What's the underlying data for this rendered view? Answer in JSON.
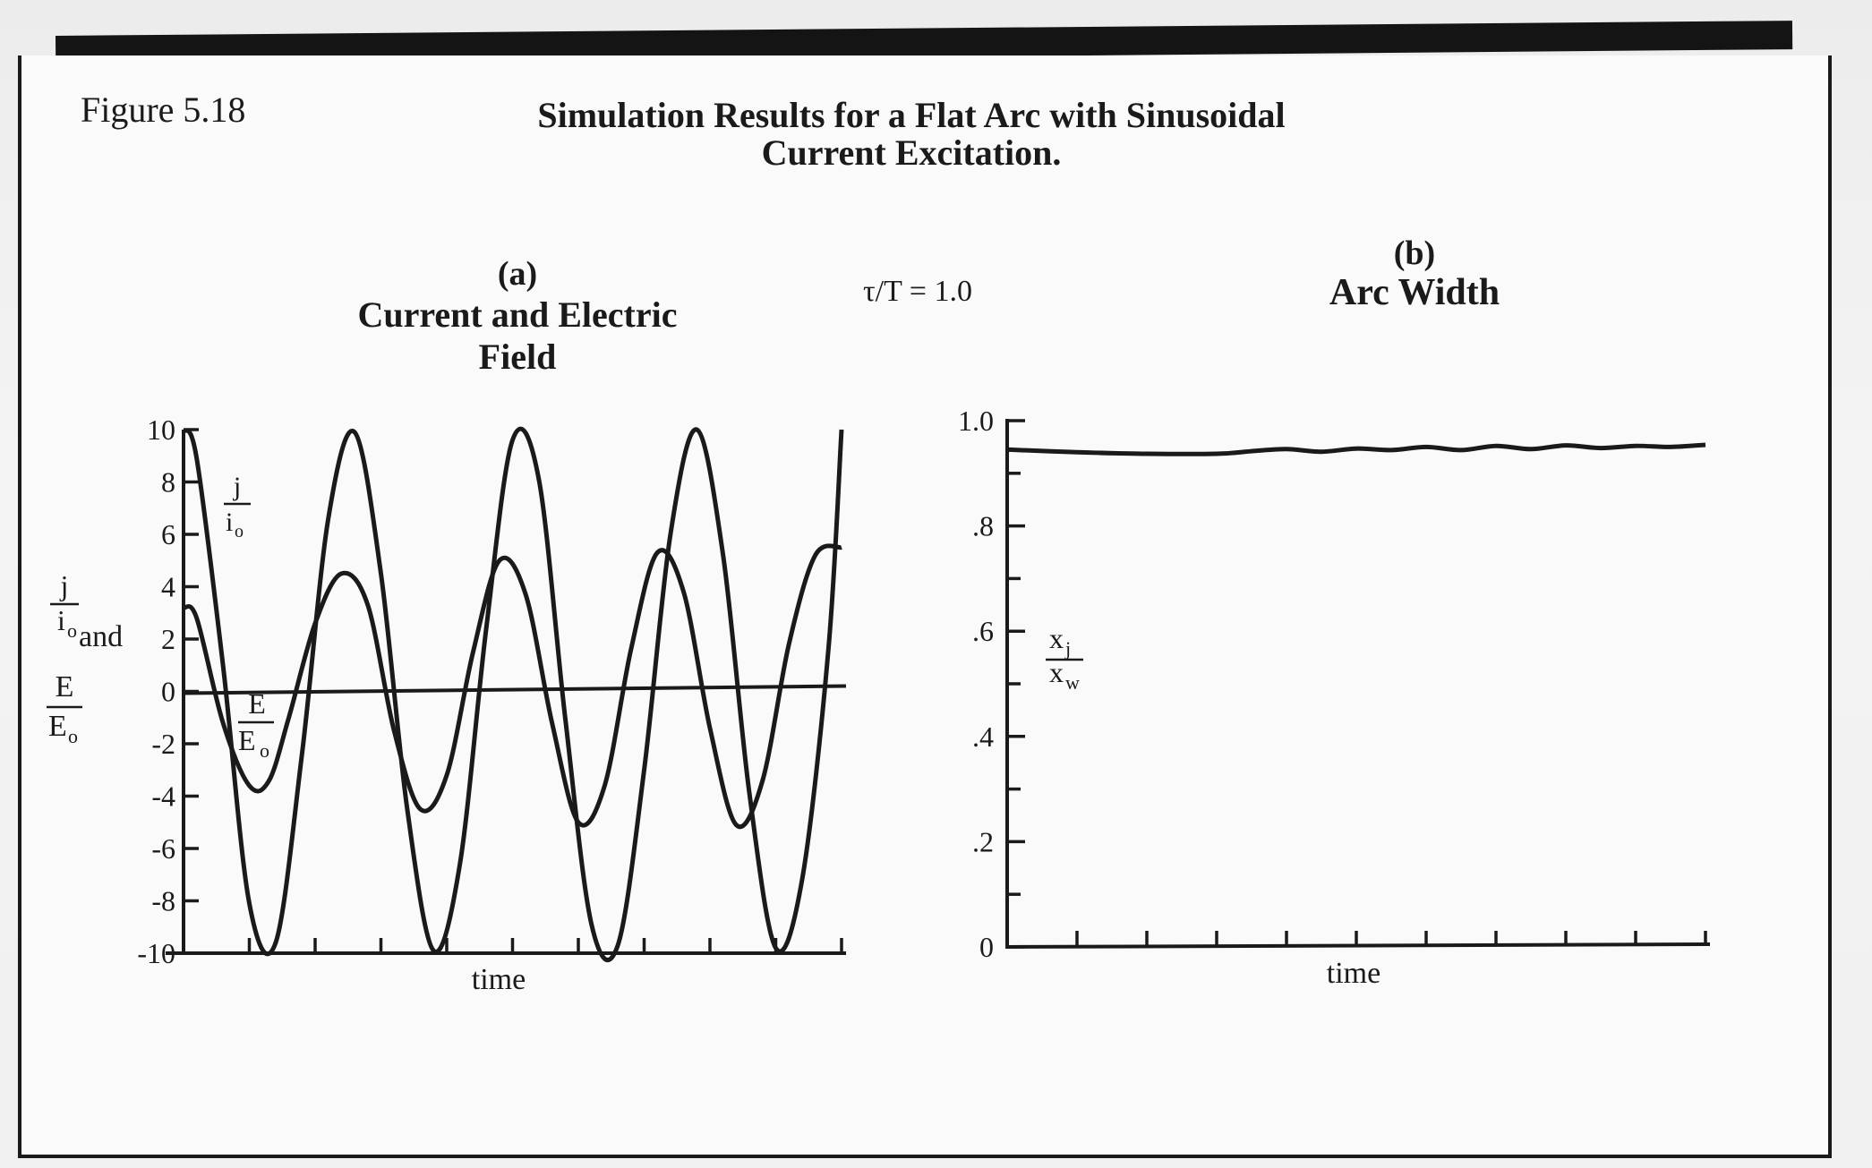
{
  "figure_label": "Figure 5.18",
  "title": {
    "line1": "Simulation Results for a Flat Arc with Sinusoidal",
    "line2": "Current Excitation."
  },
  "parameter_text": "τ/T = 1.0",
  "chart_data": [
    {
      "type": "line",
      "panel_label": "(a)",
      "title_line1": "Current and Electric",
      "title_line2": "Field",
      "xlabel": "time",
      "ylabel": {
        "num1": "j",
        "den1": "i",
        "sub1": "o",
        "joiner": "and",
        "num2": "E",
        "den2": "E",
        "sub2": "o"
      },
      "ylim": [
        -10,
        10
      ],
      "yticks": [
        "10",
        "8",
        "6",
        "4",
        "2",
        "0",
        "-2",
        "-4",
        "-6",
        "-8",
        "-10"
      ],
      "x_tick_count": 10,
      "reference_line_y": 0,
      "series": [
        {
          "name": "j/io",
          "label": {
            "num": "j",
            "den": "i",
            "sub": "o"
          },
          "x": [
            0,
            0.2,
            0.6,
            1.0,
            1.4,
            1.8,
            2.2,
            2.6,
            3.0,
            3.4,
            3.8,
            4.2,
            4.6,
            5.0,
            5.4,
            5.8,
            6.2,
            6.6,
            7.0,
            7.4,
            7.8,
            8.2,
            8.6,
            9.0,
            9.4,
            9.8,
            10.0
          ],
          "y": [
            10,
            8.9,
            1.0,
            -8.1,
            -9.6,
            -2.4,
            6.6,
            9.9,
            4.5,
            -4.5,
            -9.9,
            -6.6,
            2.4,
            9.6,
            8.1,
            -1.0,
            -8.9,
            -9.7,
            -3.0,
            6.0,
            10.0,
            5.2,
            -3.9,
            -9.8,
            -7.2,
            1.6,
            10.0
          ]
        },
        {
          "name": "E/Eo",
          "label": {
            "num": "E",
            "den": "E",
            "sub": "o"
          },
          "x": [
            0,
            0.2,
            0.6,
            1.0,
            1.3,
            1.6,
            2.0,
            2.4,
            2.8,
            3.2,
            3.6,
            4.0,
            4.4,
            4.8,
            5.2,
            5.6,
            6.0,
            6.4,
            6.8,
            7.2,
            7.6,
            8.0,
            8.4,
            8.8,
            9.2,
            9.6,
            10.0
          ],
          "y": [
            3.2,
            2.8,
            -1.2,
            -3.6,
            -3.4,
            -1.0,
            2.6,
            4.5,
            3.3,
            -1.5,
            -4.5,
            -3.2,
            1.5,
            5.0,
            3.7,
            -1.2,
            -5.0,
            -3.6,
            1.6,
            5.3,
            3.8,
            -1.4,
            -5.1,
            -3.4,
            1.8,
            5.2,
            5.5
          ]
        }
      ]
    },
    {
      "type": "line",
      "panel_label": "(b)",
      "title_line1": "Arc Width",
      "xlabel": "time",
      "ylabel": {
        "num": "x",
        "num_sub": "j",
        "den": "x",
        "den_sub": "w"
      },
      "ylim": [
        0,
        1.0
      ],
      "yticks": [
        "1.0",
        ".8",
        ".6",
        ".4",
        ".2",
        "0"
      ],
      "x_tick_count": 10,
      "series": [
        {
          "x": [
            0,
            1,
            2,
            3,
            3.5,
            4,
            4.5,
            5,
            5.5,
            6,
            6.5,
            7,
            7.5,
            8,
            8.5,
            9,
            9.5,
            10
          ],
          "y": [
            0.945,
            0.94,
            0.937,
            0.937,
            0.942,
            0.946,
            0.941,
            0.947,
            0.944,
            0.95,
            0.944,
            0.952,
            0.946,
            0.953,
            0.948,
            0.952,
            0.95,
            0.954
          ]
        }
      ]
    }
  ]
}
